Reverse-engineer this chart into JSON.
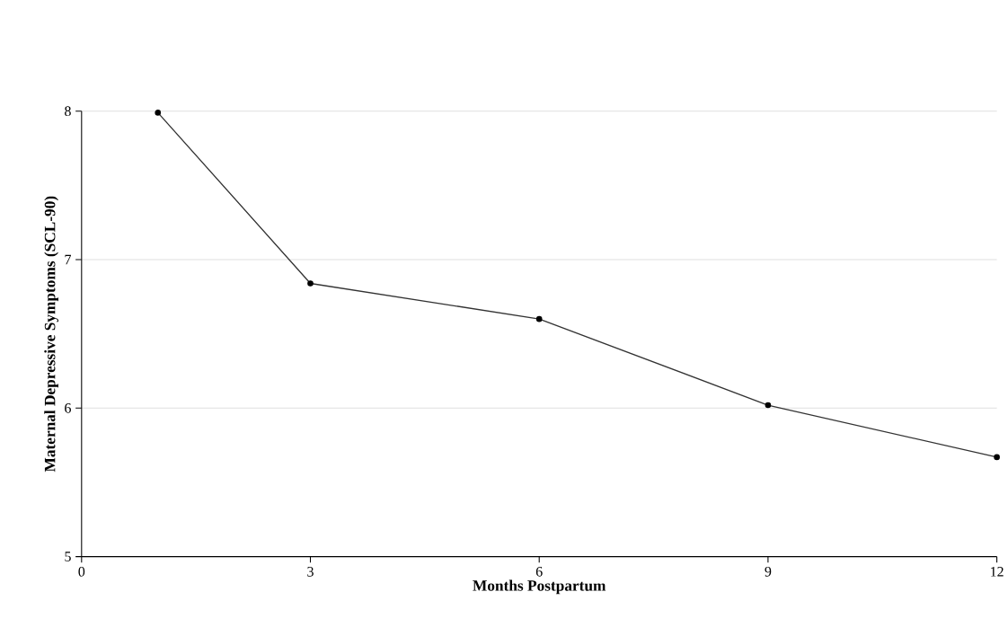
{
  "chart_data": {
    "type": "line",
    "xlabel": "Months Postpartum",
    "ylabel": "Maternal Depressive Symptoms (SCL-90)",
    "x": [
      1,
      3,
      6,
      9,
      12
    ],
    "series": [
      {
        "color": "#333333",
        "values": [
          7.99,
          6.84,
          6.6,
          6.02,
          5.67
        ]
      }
    ],
    "xlim": [
      0,
      12
    ],
    "xticks": [
      0,
      3,
      6,
      9,
      12
    ],
    "ylim": [
      5,
      8
    ],
    "yticks": [
      5,
      6,
      7,
      8
    ],
    "grid": "y",
    "marker": "circle"
  }
}
